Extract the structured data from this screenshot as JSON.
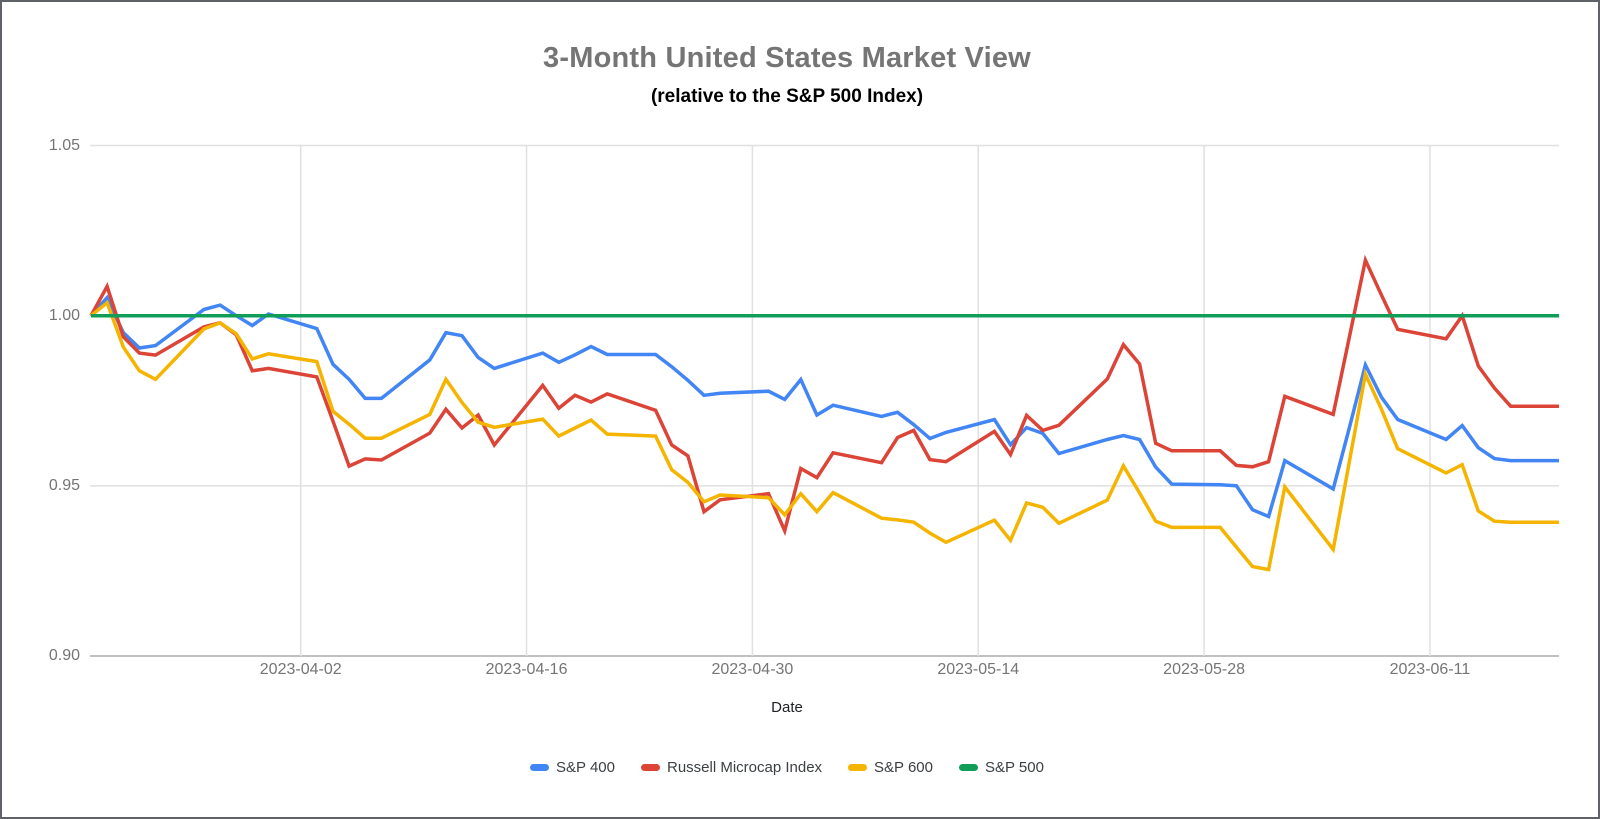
{
  "chart_data": {
    "type": "line",
    "title": "3-Month United States Market View",
    "subtitle": "(relative to the S&P 500 Index)",
    "xlabel": "Date",
    "ylabel": "",
    "ylim": [
      0.9,
      1.05
    ],
    "grid": true,
    "legend_position": "bottom",
    "yticks": [
      {
        "value": 0.9,
        "label": "0.90"
      },
      {
        "value": 0.95,
        "label": "0.95"
      },
      {
        "value": 1.0,
        "label": "1.00"
      },
      {
        "value": 1.05,
        "label": "1.05"
      }
    ],
    "xticks": [
      "2023-04-02",
      "2023-04-16",
      "2023-04-30",
      "2023-05-14",
      "2023-05-28",
      "2023-06-11"
    ],
    "x_range": [
      "2023-03-20",
      "2023-06-19"
    ],
    "x": [
      "2023-03-20",
      "2023-03-21",
      "2023-03-22",
      "2023-03-23",
      "2023-03-24",
      "2023-03-27",
      "2023-03-28",
      "2023-03-29",
      "2023-03-30",
      "2023-03-31",
      "2023-04-03",
      "2023-04-04",
      "2023-04-05",
      "2023-04-06",
      "2023-04-07",
      "2023-04-10",
      "2023-04-11",
      "2023-04-12",
      "2023-04-13",
      "2023-04-14",
      "2023-04-17",
      "2023-04-18",
      "2023-04-19",
      "2023-04-20",
      "2023-04-21",
      "2023-04-24",
      "2023-04-25",
      "2023-04-26",
      "2023-04-27",
      "2023-04-28",
      "2023-05-01",
      "2023-05-02",
      "2023-05-03",
      "2023-05-04",
      "2023-05-05",
      "2023-05-08",
      "2023-05-09",
      "2023-05-10",
      "2023-05-11",
      "2023-05-12",
      "2023-05-15",
      "2023-05-16",
      "2023-05-17",
      "2023-05-18",
      "2023-05-19",
      "2023-05-22",
      "2023-05-23",
      "2023-05-24",
      "2023-05-25",
      "2023-05-26",
      "2023-05-29",
      "2023-05-30",
      "2023-05-31",
      "2023-06-01",
      "2023-06-02",
      "2023-06-05",
      "2023-06-06",
      "2023-06-07",
      "2023-06-08",
      "2023-06-09",
      "2023-06-12",
      "2023-06-13",
      "2023-06-14",
      "2023-06-15",
      "2023-06-16",
      "2023-06-19"
    ],
    "series": [
      {
        "name": "S&P 400",
        "color": "#4285F4",
        "values": [
          1.0,
          1.0053,
          0.995,
          0.9905,
          0.9912,
          1.0018,
          1.0031,
          1.0,
          0.9971,
          1.0005,
          0.9962,
          0.9857,
          0.9813,
          0.9757,
          0.9757,
          0.987,
          0.995,
          0.9941,
          0.9877,
          0.9845,
          0.989,
          0.9863,
          0.9885,
          0.9909,
          0.9886,
          0.9886,
          0.985,
          0.981,
          0.9766,
          0.9772,
          0.9778,
          0.9754,
          0.9812,
          0.9708,
          0.9737,
          0.9704,
          0.9716,
          0.968,
          0.9639,
          0.9657,
          0.9695,
          0.9621,
          0.9671,
          0.9654,
          0.9595,
          0.9636,
          0.9648,
          0.9636,
          0.9555,
          0.9505,
          0.9503,
          0.95,
          0.943,
          0.941,
          0.9574,
          0.9491,
          0.967,
          0.9855,
          0.976,
          0.9695,
          0.9636,
          0.9677,
          0.9612,
          0.958,
          0.9574,
          0.9574
        ]
      },
      {
        "name": "Russell Microcap Index",
        "color": "#DB4437",
        "values": [
          1.0,
          1.0086,
          0.9938,
          0.989,
          0.9884,
          0.9967,
          0.9979,
          0.9944,
          0.9838,
          0.9845,
          0.982,
          0.969,
          0.9558,
          0.9579,
          0.9576,
          0.9655,
          0.9725,
          0.967,
          0.9708,
          0.962,
          0.9795,
          0.9728,
          0.9766,
          0.9746,
          0.977,
          0.9722,
          0.962,
          0.9588,
          0.9424,
          0.9459,
          0.9477,
          0.9368,
          0.9551,
          0.9524,
          0.9597,
          0.9568,
          0.9642,
          0.9663,
          0.9577,
          0.9571,
          0.966,
          0.9592,
          0.9707,
          0.9663,
          0.9678,
          0.9814,
          0.9915,
          0.9858,
          0.9625,
          0.9603,
          0.9603,
          0.956,
          0.9556,
          0.9571,
          0.9763,
          0.971,
          0.9936,
          1.0163,
          1.006,
          0.996,
          0.9932,
          1.0,
          0.9852,
          0.9787,
          0.9734,
          0.9734
        ]
      },
      {
        "name": "S&P 600",
        "color": "#F4B400",
        "values": [
          1.0,
          1.0038,
          0.9908,
          0.9838,
          0.9813,
          0.9961,
          0.9979,
          0.9947,
          0.9873,
          0.9888,
          0.9865,
          0.9719,
          0.9681,
          0.964,
          0.964,
          0.971,
          0.9813,
          0.9745,
          0.9687,
          0.9672,
          0.9696,
          0.9646,
          0.967,
          0.9693,
          0.9652,
          0.9646,
          0.9547,
          0.951,
          0.9453,
          0.9473,
          0.9465,
          0.9415,
          0.9477,
          0.9424,
          0.948,
          0.9405,
          0.94,
          0.9393,
          0.9361,
          0.9334,
          0.9399,
          0.934,
          0.945,
          0.9437,
          0.939,
          0.9458,
          0.9559,
          0.9479,
          0.9396,
          0.9378,
          0.9378,
          0.932,
          0.9263,
          0.9254,
          0.9497,
          0.9313,
          0.957,
          0.9828,
          0.9725,
          0.9609,
          0.9538,
          0.9562,
          0.9426,
          0.9396,
          0.9393,
          0.9393
        ]
      },
      {
        "name": "S&P 500",
        "color": "#0F9D58",
        "constant": 1.0,
        "values": []
      }
    ]
  },
  "colors": {
    "title": "#757575",
    "subtitle": "#000000",
    "axis_labels": "#757575",
    "gridline": "#e0e0e0",
    "axis_line": "#ababab",
    "border": "#5f6368",
    "legend_text": "#3c4043"
  }
}
